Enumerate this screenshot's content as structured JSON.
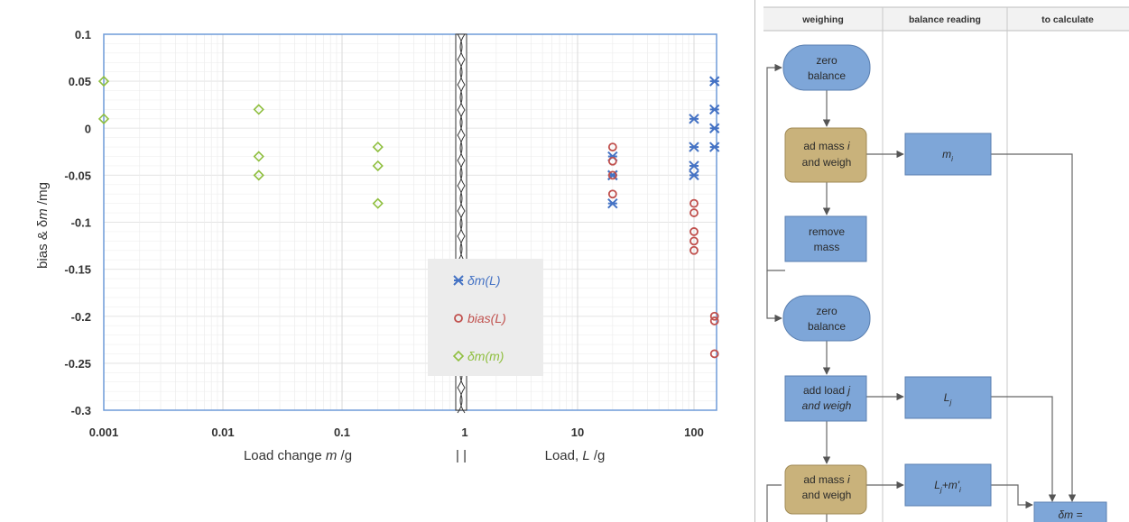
{
  "chart_data": {
    "type": "scatter",
    "ylabel_parts": [
      "bias & δ",
      "m",
      "  /mg"
    ],
    "xlabel_left_parts": [
      "Load change ",
      "m",
      " /g"
    ],
    "xlabel_mid": "| |",
    "xlabel_right_parts": [
      "Load, ",
      "L",
      " /g"
    ],
    "ylim": [
      -0.3,
      0.1
    ],
    "yticks": [
      "0.1",
      "0.05",
      "0",
      "-0.05",
      "-0.1",
      "-0.15",
      "-0.2",
      "-0.25",
      "-0.3"
    ],
    "ytick_values": [
      0.1,
      0.05,
      0,
      -0.05,
      -0.1,
      -0.15,
      -0.2,
      -0.25,
      -0.3
    ],
    "x_left_scale": "log",
    "x_left_range": [
      0.001,
      1
    ],
    "x_left_ticks": [
      "0.001",
      "0.01",
      "0.1",
      "1"
    ],
    "x_left_tick_values": [
      0.001,
      0.01,
      0.1,
      1
    ],
    "x_right_scale": "log",
    "x_right_range": [
      1,
      150
    ],
    "x_right_ticks": [
      "10",
      "100"
    ],
    "x_right_tick_values": [
      10,
      100
    ],
    "grid": true,
    "axis_break_at": 1,
    "legend_position": "bottom-center",
    "series": [
      {
        "name": "δm(L)",
        "marker": "asterisk",
        "color": "#4472c4",
        "axis": "right",
        "points": [
          [
            20,
            -0.03
          ],
          [
            20,
            -0.05
          ],
          [
            20,
            -0.05
          ],
          [
            20,
            -0.08
          ],
          [
            100,
            0.01
          ],
          [
            100,
            -0.02
          ],
          [
            100,
            -0.04
          ],
          [
            100,
            -0.05
          ],
          [
            150,
            0.05
          ],
          [
            150,
            0.02
          ],
          [
            150,
            0.0
          ],
          [
            150,
            -0.02
          ]
        ]
      },
      {
        "name": "bias(L)",
        "marker": "circle",
        "color": "#c0504d",
        "axis": "right",
        "points": [
          [
            20,
            -0.02
          ],
          [
            20,
            -0.035
          ],
          [
            20,
            -0.05
          ],
          [
            20,
            -0.07
          ],
          [
            100,
            -0.08
          ],
          [
            100,
            -0.09
          ],
          [
            100,
            -0.11
          ],
          [
            100,
            -0.12
          ],
          [
            100,
            -0.13
          ],
          [
            150,
            -0.2
          ],
          [
            150,
            -0.205
          ],
          [
            150,
            -0.24
          ]
        ]
      },
      {
        "name": "δm(m)",
        "marker": "diamond",
        "color": "#8fbf3f",
        "axis": "left",
        "points": [
          [
            0.001,
            0.05
          ],
          [
            0.001,
            0.01
          ],
          [
            0.02,
            0.02
          ],
          [
            0.02,
            -0.03
          ],
          [
            0.02,
            -0.05
          ],
          [
            0.2,
            -0.02
          ],
          [
            0.2,
            -0.04
          ],
          [
            0.2,
            -0.08
          ]
        ]
      }
    ]
  },
  "flowchart": {
    "headers": [
      "weighing",
      "balance reading",
      "to calculate"
    ],
    "steps": [
      {
        "lines": [
          "zero",
          "balance"
        ],
        "shape": "rounded",
        "color": "#7ea6d8"
      },
      {
        "lines": [
          "ad mass i",
          "and weigh"
        ],
        "italic_word": "i",
        "shape": "rounded-rect",
        "color": "#c9b27b"
      },
      {
        "lines": [
          "remove",
          "mass"
        ],
        "shape": "rect",
        "color": "#7ea6d8"
      },
      {
        "lines": [
          "zero",
          "balance"
        ],
        "shape": "rounded",
        "color": "#7ea6d8"
      },
      {
        "lines": [
          "add load j",
          "and weigh"
        ],
        "italic_word": "j",
        "shape": "rect",
        "color": "#7ea6d8"
      },
      {
        "lines": [
          "ad mass i",
          "and weigh"
        ],
        "italic_word": "i",
        "shape": "rounded-rect",
        "color": "#c9b27b"
      }
    ],
    "readings": [
      "m",
      "L",
      "L +m'"
    ],
    "reading_subs": [
      "i",
      "j",
      "j",
      "i"
    ],
    "calc": "δm ="
  }
}
